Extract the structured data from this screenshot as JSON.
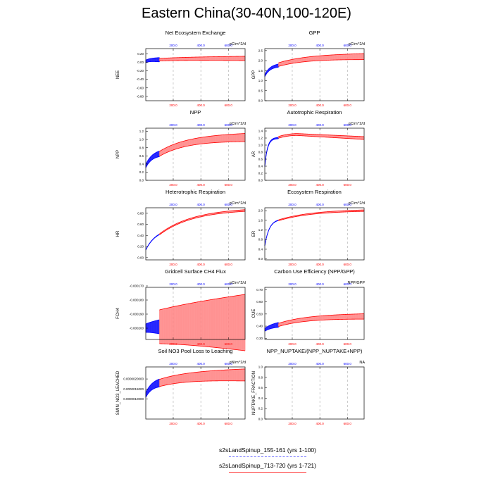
{
  "title": "Eastern China(30-40N,100-120E)",
  "colors": {
    "blue": "#0000ff",
    "red": "#ff0000",
    "red_light": "#ff8080"
  },
  "legend": [
    {
      "label": "s2sLandSpinup_155-161 (yrs 1-100)",
      "style": "dashed",
      "color": "#8080ff"
    },
    {
      "label": "s2sLandSpinup_713-720 (yrs 1-721)",
      "style": "solid",
      "color": "#ff4040"
    }
  ],
  "chart_data": [
    {
      "type": "line",
      "title": "Net Ecosystem Exchange",
      "units": "gC/m^2/d",
      "ylabel": "NEE",
      "ylim": [
        -0.9,
        0.32
      ],
      "yticks": [
        "0.20",
        "0.00",
        "-0.20",
        "-0.40",
        "-0.60",
        "-0.80"
      ],
      "xlim": [
        1,
        721
      ],
      "xticks_bottom": [
        "200.0",
        "400.0",
        "600.0"
      ],
      "xticks_top": [
        "200.0",
        "400.0",
        "600.0"
      ],
      "grid_x": [
        200,
        400,
        600
      ],
      "series": [
        {
          "name": "s2sLandSpinup_155-161 (yrs 1-100)",
          "color": "#0000ff",
          "x": [
            1,
            100
          ],
          "start": 0.02,
          "end": 0.06,
          "plateau": 0.06,
          "rate": 4,
          "amp": 0.05
        },
        {
          "name": "s2sLandSpinup_713-720 (yrs 1-721)",
          "color": "#ff0000",
          "x": [
            100,
            721
          ],
          "start": 0.06,
          "end": 0.09,
          "plateau": 0.09,
          "rate": 3,
          "amp": 0.05
        }
      ]
    },
    {
      "type": "line",
      "title": "GPP",
      "units": "gC/m^2/d",
      "ylabel": "GPP",
      "ylim": [
        0.0,
        2.6
      ],
      "yticks": [
        "2.5",
        "2.0",
        "1.5",
        "1.0",
        "0.5",
        "0.0"
      ],
      "xlim": [
        1,
        721
      ],
      "xticks_bottom": [
        "200.0",
        "400.0",
        "600.0"
      ],
      "xticks_top": [
        "200.0",
        "400.0",
        "600.0"
      ],
      "grid_x": [
        200,
        400,
        600
      ],
      "series": [
        {
          "name": "s2sLandSpinup_155-161 (yrs 1-100)",
          "color": "#0000ff",
          "x": [
            1,
            100
          ],
          "start": 1.25,
          "end": 1.75,
          "plateau": 2.2,
          "rate": 2.5,
          "amp": 0.08
        },
        {
          "name": "s2sLandSpinup_713-720 (yrs 1-721)",
          "color": "#ff0000",
          "x": [
            100,
            721
          ],
          "start": 1.8,
          "end": 2.2,
          "plateau": 2.2,
          "rate": 3,
          "amp": 0.15
        }
      ]
    },
    {
      "type": "line",
      "title": "NPP",
      "units": "gC/m^2/d",
      "ylabel": "NPP",
      "ylim": [
        0.0,
        1.28
      ],
      "yticks": [
        "1.2",
        "1.0",
        "0.8",
        "0.6",
        "0.4",
        "0.2",
        "0.0"
      ],
      "xlim": [
        1,
        721
      ],
      "xticks_bottom": [
        "200.0",
        "400.0",
        "600.0"
      ],
      "xticks_top": [
        "200.0",
        "400.0",
        "600.0"
      ],
      "grid_x": [
        200,
        400,
        600
      ],
      "series": [
        {
          "name": "s2sLandSpinup_155-161 (yrs 1-100)",
          "color": "#0000ff",
          "x": [
            1,
            100
          ],
          "start": 0.35,
          "end": 0.65,
          "plateau": 1.05,
          "rate": 2,
          "amp": 0.07
        },
        {
          "name": "s2sLandSpinup_713-720 (yrs 1-721)",
          "color": "#ff0000",
          "x": [
            100,
            721
          ],
          "start": 0.65,
          "end": 1.05,
          "plateau": 1.05,
          "rate": 3,
          "amp": 0.1
        }
      ]
    },
    {
      "type": "line",
      "title": "Autotrophic Respiration",
      "units": "gC/m^2/d",
      "ylabel": "AR",
      "ylim": [
        0.0,
        1.48
      ],
      "yticks": [
        "1.4",
        "1.2",
        "1.0",
        "0.8",
        "0.6",
        "0.4",
        "0.2",
        "0.0"
      ],
      "xlim": [
        1,
        721
      ],
      "xticks_bottom": [
        "200.0",
        "400.0",
        "600.0"
      ],
      "xticks_top": [
        "200.0",
        "400.0",
        "600.0"
      ],
      "grid_x": [
        200,
        400,
        600
      ],
      "series": [
        {
          "name": "s2sLandSpinup_155-161 (yrs 1-100)",
          "color": "#0000ff",
          "x": [
            1,
            100
          ],
          "start": 0.4,
          "end": 1.2,
          "plateau": 1.3,
          "rate": 5,
          "amp": 0.02
        },
        {
          "name": "s2sLandSpinup_713-720 (yrs 1-721)",
          "color": "#ff0000",
          "x": [
            100,
            721
          ],
          "start": 1.22,
          "end": 1.2,
          "peak": 1.3,
          "amp": 0.04
        }
      ]
    },
    {
      "type": "line",
      "title": "Heterotrophic Respiration",
      "units": "gC/m^2/d",
      "ylabel": "HR",
      "ylim": [
        -0.04,
        0.9
      ],
      "yticks": [
        "0.80",
        "0.60",
        "0.40",
        "0.20",
        "0.00"
      ],
      "xlim": [
        1,
        721
      ],
      "xticks_bottom": [
        "200.0",
        "400.0",
        "600.0"
      ],
      "xticks_top": [
        "200.0",
        "400.0",
        "600.0"
      ],
      "grid_x": [
        200,
        400,
        600
      ],
      "series": [
        {
          "name": "s2sLandSpinup_155-161 (yrs 1-100)",
          "color": "#0000ff",
          "x": [
            1,
            100
          ],
          "start": 0.14,
          "end": 0.42,
          "plateau": 0.85,
          "rate": 1.3,
          "amp": 0.005
        },
        {
          "name": "s2sLandSpinup_713-720 (yrs 1-721)",
          "color": "#ff0000",
          "x": [
            100,
            721
          ],
          "start": 0.42,
          "end": 0.85,
          "plateau": 0.88,
          "rate": 2.5,
          "amp": 0.015
        }
      ]
    },
    {
      "type": "line",
      "title": "Ecosystem Respiration",
      "units": "gC/m^2/d",
      "ylabel": "ER",
      "ylim": [
        -0.04,
        2.12
      ],
      "yticks": [
        "2.0",
        "1.6",
        "1.2",
        "0.8",
        "0.4",
        "0.0"
      ],
      "xlim": [
        1,
        721
      ],
      "xticks_bottom": [
        "200.0",
        "400.0",
        "600.0"
      ],
      "xticks_top": [
        "200.0",
        "400.0",
        "600.0"
      ],
      "grid_x": [
        200,
        400,
        600
      ],
      "series": [
        {
          "name": "s2sLandSpinup_155-161 (yrs 1-100)",
          "color": "#0000ff",
          "x": [
            1,
            100
          ],
          "start": 0.55,
          "end": 1.6,
          "plateau": 2.0,
          "rate": 3,
          "amp": 0.01
        },
        {
          "name": "s2sLandSpinup_713-720 (yrs 1-721)",
          "color": "#ff0000",
          "x": [
            100,
            721
          ],
          "start": 1.6,
          "end": 2.0,
          "plateau": 2.02,
          "rate": 2.5,
          "amp": 0.03
        }
      ]
    },
    {
      "type": "line",
      "title": "Gridcell Surface CH4 Flux",
      "units": "gC/m^2/d",
      "ylabel": "FCH4",
      "ylim": [
        -0.000208,
        -0.000171
      ],
      "yticks": [
        "-0.000170",
        "-0.000180",
        "-0.000190",
        "-0.000200"
      ],
      "xlim": [
        1,
        721
      ],
      "xticks_bottom": [
        "200.0",
        "400.0",
        "600.0"
      ],
      "xticks_top": [
        "200.0",
        "400.0",
        "600.0"
      ],
      "grid_x": [
        200,
        400,
        600
      ],
      "series": [
        {
          "name": "s2sLandSpinup_155-161 (yrs 1-100)",
          "color": "#0000ff",
          "x": [
            1,
            100
          ],
          "start": -0.0002,
          "end": -0.000199,
          "plateau": -0.000199,
          "rate": 2,
          "amp": 5e-06
        },
        {
          "name": "s2sLandSpinup_713-720 (yrs 1-721)",
          "color": "#ff0000",
          "x": [
            100,
            721
          ],
          "start": -0.000199,
          "end": -0.000196,
          "plateau": -0.000196,
          "rate": 2,
          "amp": 2e-05
        }
      ]
    },
    {
      "type": "line",
      "title": "Carbon Use Efficiency (NPP/GPP)",
      "units": "NPP/GPP",
      "ylabel": "CUE",
      "ylim": [
        0.29,
        0.72
      ],
      "yticks": [
        "0.70",
        "0.60",
        "0.50",
        "0.40",
        "0.30"
      ],
      "xlim": [
        1,
        721
      ],
      "xticks_bottom": [
        "200.0",
        "400.0",
        "600.0"
      ],
      "xticks_top": [
        "200.0",
        "400.0",
        "600.0"
      ],
      "grid_x": [
        200,
        400,
        600
      ],
      "series": [
        {
          "name": "s2sLandSpinup_155-161 (yrs 1-100)",
          "color": "#0000ff",
          "x": [
            1,
            100
          ],
          "start": 0.37,
          "end": 0.41,
          "plateau": 0.48,
          "rate": 1.5,
          "amp": 0.02
        },
        {
          "name": "s2sLandSpinup_713-720 (yrs 1-721)",
          "color": "#ff0000",
          "x": [
            100,
            721
          ],
          "start": 0.41,
          "end": 0.48,
          "plateau": 0.48,
          "rate": 3,
          "amp": 0.022
        }
      ]
    },
    {
      "type": "line",
      "title": "Soil NO3 Pool Loss to Leaching",
      "units": "gN/m^2/d",
      "ylabel": "SMIN_NO3_LEACHED",
      "ylim": [
        0.0,
        2.6e-06
      ],
      "yticks": [
        "0.0000020000",
        "0.0000015000",
        "0.0000010000"
      ],
      "xlim": [
        1,
        721
      ],
      "xticks_bottom": [
        "200.0",
        "400.0",
        "600.0"
      ],
      "xticks_top": [
        "200.0",
        "400.0",
        "600.0"
      ],
      "grid_x": [
        200,
        400,
        600
      ],
      "series": [
        {
          "name": "s2sLandSpinup_155-161 (yrs 1-100)",
          "color": "#0000ff",
          "x": [
            1,
            100
          ],
          "start": 1.2e-06,
          "end": 1.8e-06,
          "plateau": 2.2e-06,
          "rate": 2,
          "amp": 2e-07
        },
        {
          "name": "s2sLandSpinup_713-720 (yrs 1-721)",
          "color": "#ff0000",
          "x": [
            100,
            721
          ],
          "start": 1.8e-06,
          "end": 2.2e-06,
          "plateau": 2.2e-06,
          "rate": 3,
          "amp": 3e-07
        }
      ]
    },
    {
      "type": "line",
      "title": "NPP_NUPTAKE/(NPP_NUPTAKE+NPP)",
      "units": "NA",
      "ylabel": "NUPTAKE_FRACTION",
      "ylim": [
        0.0,
        1.0
      ],
      "yticks": [
        "1.0",
        "0.8",
        "0.6",
        "0.4",
        "0.2",
        "0.0"
      ],
      "xlim": [
        1,
        721
      ],
      "xticks_bottom": [
        "200.0",
        "400.0",
        "600.0"
      ],
      "xticks_top": [
        "200.0",
        "400.0",
        "600.0"
      ],
      "grid_x": [
        200,
        400,
        600
      ],
      "series": []
    }
  ]
}
